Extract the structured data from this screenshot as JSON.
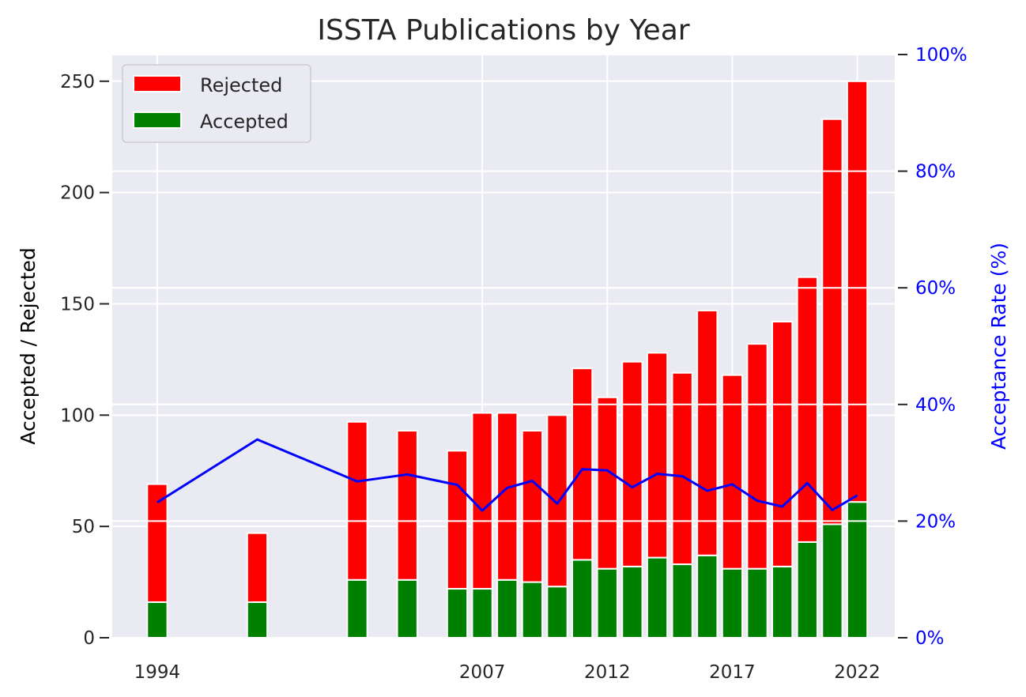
{
  "chart_data": {
    "type": "bar",
    "title": "ISSTA Publications by Year",
    "ylabel": "Accepted / Rejected",
    "ylabel_right": "Acceptance Rate (%)",
    "ylim": [
      0,
      262
    ],
    "ylim_right": [
      0,
      100
    ],
    "xlim": [
      1992.2,
      2023.5
    ],
    "yticks": [
      0,
      50,
      100,
      150,
      200,
      250
    ],
    "yticks_right": [
      0,
      20,
      40,
      60,
      80,
      100
    ],
    "yticks_right_labels": [
      "0%",
      "20%",
      "40%",
      "60%",
      "80%",
      "100%"
    ],
    "xticks": [
      1994,
      2007,
      2012,
      2017,
      2022
    ],
    "xtick_labels": [
      "1994",
      "2007",
      "2012",
      "2017",
      "2022"
    ],
    "legend_position": "top-left",
    "grid": true,
    "colors": {
      "rejected": "#ff0000",
      "accepted": "#008000",
      "rate": "#0000ff",
      "background": "#eaeaf2",
      "grid": "#ffffff"
    },
    "legend": [
      {
        "label": "Rejected",
        "color": "#ff0000"
      },
      {
        "label": "Accepted",
        "color": "#008000"
      }
    ],
    "x": [
      1994,
      1998,
      2002,
      2004,
      2006,
      2007,
      2008,
      2009,
      2010,
      2011,
      2012,
      2013,
      2014,
      2015,
      2016,
      2017,
      2018,
      2019,
      2020,
      2021,
      2022
    ],
    "series": [
      {
        "name": "Accepted",
        "type": "bar",
        "values": [
          16,
          16,
          26,
          26,
          22,
          22,
          26,
          25,
          23,
          35,
          31,
          32,
          36,
          33,
          37,
          31,
          31,
          32,
          43,
          51,
          61
        ]
      },
      {
        "name": "Rejected",
        "type": "bar",
        "stacked_on": "Accepted",
        "values": [
          53,
          31,
          71,
          67,
          62,
          79,
          75,
          68,
          77,
          86,
          77,
          92,
          92,
          86,
          110,
          87,
          101,
          110,
          119,
          182,
          189
        ]
      },
      {
        "type": "line",
        "axis": "right",
        "values": [
          23.2,
          34.0,
          26.8,
          28.0,
          26.2,
          21.8,
          25.7,
          26.9,
          23.0,
          28.9,
          28.7,
          25.8,
          28.1,
          27.7,
          25.2,
          26.3,
          23.5,
          22.5,
          26.5,
          21.9,
          24.4
        ]
      }
    ]
  }
}
